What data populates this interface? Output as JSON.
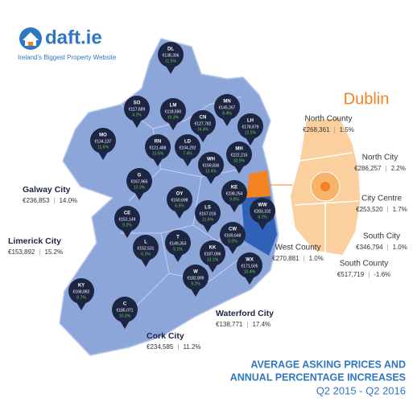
{
  "header": {
    "logo": "daft.ie",
    "tagline": "Ireland's Biggest Property Website"
  },
  "counties": [
    {
      "code": "DL",
      "price": "€138,306",
      "change": "11.5%"
    },
    {
      "code": "SO",
      "price": "€117,689",
      "change": "4.2%"
    },
    {
      "code": "LM",
      "price": "€118,590",
      "change": "10.3%"
    },
    {
      "code": "MN",
      "price": "€145,267",
      "change": "8.4%"
    },
    {
      "code": "CN",
      "price": "€127,782",
      "change": "16.4%"
    },
    {
      "code": "LH",
      "price": "€178,679",
      "change": "12.5%"
    },
    {
      "code": "MO",
      "price": "€134,137",
      "change": "11.6%"
    },
    {
      "code": "RN",
      "price": "€121,488",
      "change": "13.5%"
    },
    {
      "code": "LD",
      "price": "€104,292",
      "change": "7.4%"
    },
    {
      "code": "MH",
      "price": "€222,215",
      "change": "10.9%"
    },
    {
      "code": "WH",
      "price": "€159,836",
      "change": "13.4%"
    },
    {
      "code": "G",
      "price": "€167,965",
      "change": "13.3%"
    },
    {
      "code": "OY",
      "price": "€150,698",
      "change": "6.6%"
    },
    {
      "code": "KE",
      "price": "€238,254",
      "change": "9.0%"
    },
    {
      "code": "LS",
      "price": "€167,016",
      "change": "11.6%"
    },
    {
      "code": "WW",
      "price": "€283,102",
      "change": "4.1%"
    },
    {
      "code": "CE",
      "price": "€151,149",
      "change": "0.2%"
    },
    {
      "code": "L",
      "price": "€152,531",
      "change": "6.2%"
    },
    {
      "code": "T",
      "price": "€149,353",
      "change": "5.1%"
    },
    {
      "code": "KK",
      "price": "€187,096",
      "change": "13.1%"
    },
    {
      "code": "CW",
      "price": "€169,648",
      "change": "5.0%"
    },
    {
      "code": "WX",
      "price": "€171,505",
      "change": "10.4%"
    },
    {
      "code": "W",
      "price": "€182,899",
      "change": "9.2%"
    },
    {
      "code": "KY",
      "price": "€168,882",
      "change": "8.7%"
    },
    {
      "code": "C",
      "price": "€185,071",
      "change": "10.0%"
    }
  ],
  "cities": [
    {
      "name": "Galway City",
      "price": "€236,853",
      "change": "14.0%"
    },
    {
      "name": "Limerick City",
      "price": "€153,892",
      "change": "15.2%"
    },
    {
      "name": "Cork City",
      "price": "€234,585",
      "change": "11.2%"
    },
    {
      "name": "Waterford City",
      "price": "€138,771",
      "change": "17.4%"
    }
  ],
  "dublin": {
    "title": "Dublin",
    "areas": [
      {
        "name": "North County",
        "price": "€268,361",
        "change": "1.5%"
      },
      {
        "name": "North City",
        "price": "€286,257",
        "change": "2.2%"
      },
      {
        "name": "City Centre",
        "price": "€253,520",
        "change": "1.7%"
      },
      {
        "name": "South City",
        "price": "€346,794",
        "change": "1.0%"
      },
      {
        "name": "South County",
        "price": "€517,719",
        "change": "-1.6%"
      },
      {
        "name": "West County",
        "price": "€270,881",
        "change": "1.0%"
      }
    ]
  },
  "footer": {
    "title_line1": "AVERAGE ASKING PRICES AND",
    "title_line2": "ANNUAL PERCENTAGE INCREASES",
    "period": "Q2 2015 - Q2 2016"
  }
}
